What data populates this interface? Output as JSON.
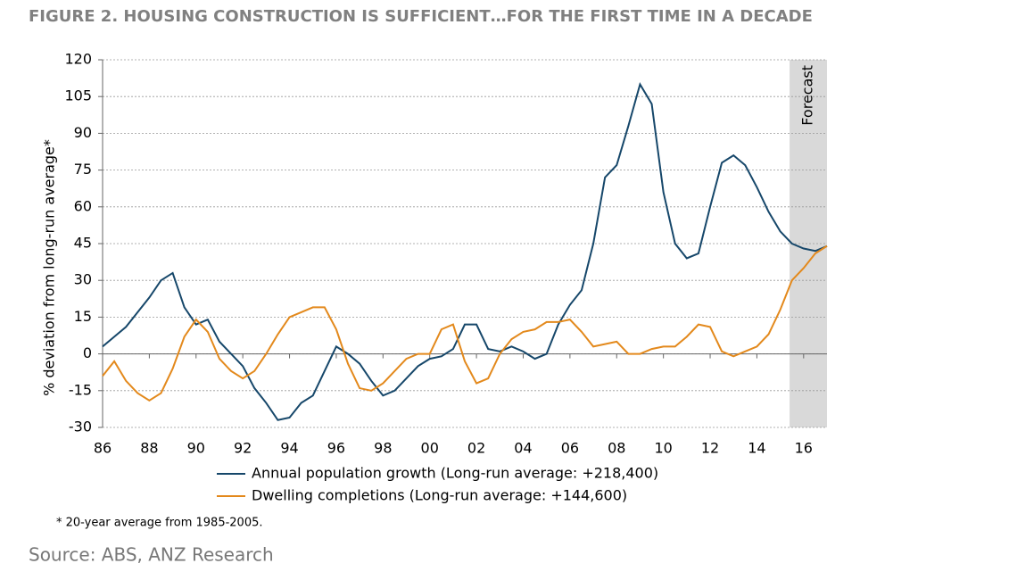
{
  "chart_data": {
    "type": "line",
    "title": "FIGURE 2. HOUSING CONSTRUCTION IS SUFFICIENT…FOR THE FIRST TIME IN A DECADE",
    "y_label": "% deviation from long-run average*",
    "footnote": "* 20-year average from 1985-2005.",
    "source": "Source: ABS, ANZ Research",
    "forecast": {
      "label": "Forecast",
      "start": 2015.4,
      "end": 2017
    },
    "xlim": [
      1986,
      2017
    ],
    "xticks": [
      {
        "value": 1986,
        "label": "86"
      },
      {
        "value": 1988,
        "label": "88"
      },
      {
        "value": 1990,
        "label": "90"
      },
      {
        "value": 1992,
        "label": "92"
      },
      {
        "value": 1994,
        "label": "94"
      },
      {
        "value": 1996,
        "label": "96"
      },
      {
        "value": 1998,
        "label": "98"
      },
      {
        "value": 2000,
        "label": "00"
      },
      {
        "value": 2002,
        "label": "02"
      },
      {
        "value": 2004,
        "label": "04"
      },
      {
        "value": 2006,
        "label": "06"
      },
      {
        "value": 2008,
        "label": "08"
      },
      {
        "value": 2010,
        "label": "10"
      },
      {
        "value": 2012,
        "label": "12"
      },
      {
        "value": 2014,
        "label": "14"
      },
      {
        "value": 2016,
        "label": "16"
      }
    ],
    "ylim": [
      -30,
      120
    ],
    "yticks": [
      -30,
      -15,
      0,
      15,
      30,
      45,
      60,
      75,
      90,
      105,
      120
    ],
    "grid": true,
    "x": [
      1986,
      1986.5,
      1987,
      1987.5,
      1988,
      1988.5,
      1989,
      1989.5,
      1990,
      1990.5,
      1991,
      1991.5,
      1992,
      1992.5,
      1993,
      1993.5,
      1994,
      1994.5,
      1995,
      1995.5,
      1996,
      1996.5,
      1997,
      1997.5,
      1998,
      1998.5,
      1999,
      1999.5,
      2000,
      2000.5,
      2001,
      2001.5,
      2002,
      2002.5,
      2003,
      2003.5,
      2004,
      2004.5,
      2005,
      2005.5,
      2006,
      2006.5,
      2007,
      2007.5,
      2008,
      2008.5,
      2009,
      2009.5,
      2010,
      2010.5,
      2011,
      2011.5,
      2012,
      2012.5,
      2013,
      2013.5,
      2014,
      2014.5,
      2015,
      2015.5,
      2016,
      2016.5,
      2017
    ],
    "series": [
      {
        "name": "Annual population growth (Long-run average: +218,400)",
        "color": "#16476a",
        "values": [
          3,
          7,
          11,
          17,
          23,
          30,
          33,
          19,
          12,
          14,
          5,
          0,
          -5,
          -14,
          -20,
          -27,
          -26,
          -20,
          -17,
          -7,
          3,
          0,
          -4,
          -11,
          -17,
          -15,
          -10,
          -5,
          -2,
          -1,
          2,
          12,
          12,
          2,
          1,
          3,
          1,
          -2,
          0,
          12,
          20,
          26,
          45,
          72,
          77,
          93,
          110,
          102,
          66,
          45,
          39,
          41,
          60,
          78,
          81,
          77,
          68,
          58,
          50,
          45,
          43,
          42,
          44
        ]
      },
      {
        "name": "Dwelling completions (Long-run average: +144,600)",
        "color": "#e3891c",
        "values": [
          -9,
          -3,
          -11,
          -16,
          -19,
          -16,
          -6,
          7,
          14,
          9,
          -2,
          -7,
          -10,
          -7,
          0,
          8,
          15,
          17,
          19,
          19,
          10,
          -4,
          -14,
          -15,
          -12,
          -7,
          -2,
          0,
          0,
          10,
          12,
          -3,
          -12,
          -10,
          0,
          6,
          9,
          10,
          13,
          13,
          14,
          9,
          3,
          4,
          5,
          0,
          0,
          2,
          3,
          3,
          7,
          12,
          11,
          1,
          -1,
          1,
          3,
          8,
          18,
          30,
          35,
          41,
          44
        ]
      }
    ]
  }
}
